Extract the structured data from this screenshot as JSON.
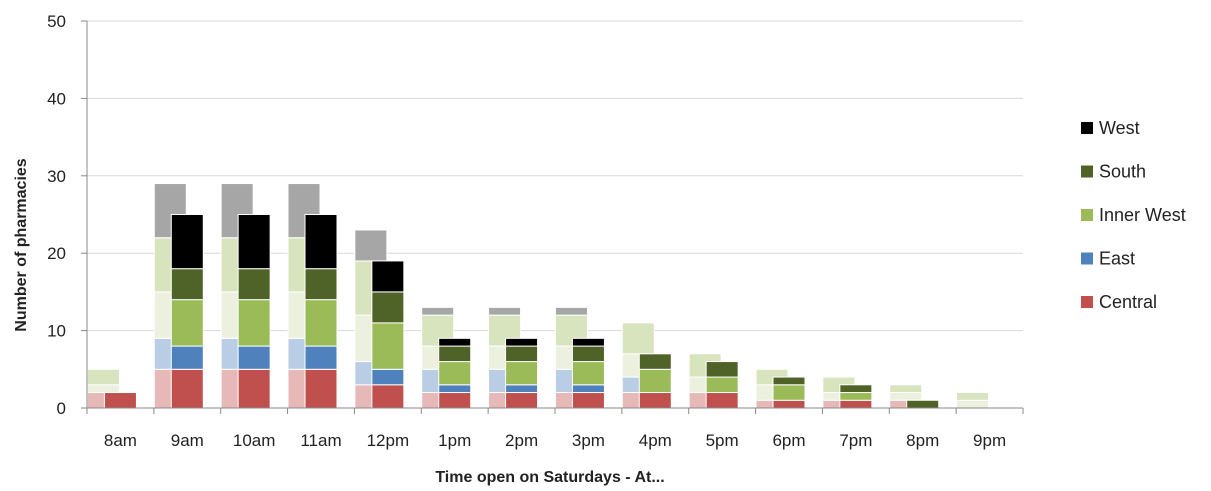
{
  "chart_data": {
    "type": "bar",
    "stacked": true,
    "title": "",
    "xlabel": "Time open on Saturdays - At...",
    "ylabel": "Number of pharmacies",
    "ylim": [
      0,
      50
    ],
    "yticks": [
      0,
      10,
      20,
      30,
      40,
      50
    ],
    "grid": true,
    "legend_position": "right",
    "categories": [
      "8am",
      "9am",
      "10am",
      "11am",
      "12pm",
      "1pm",
      "2pm",
      "3pm",
      "4pm",
      "5pm",
      "6pm",
      "7pm",
      "8pm",
      "9pm"
    ],
    "series": [
      {
        "name": "Central",
        "color": "#c0504d",
        "values": [
          2,
          5,
          5,
          5,
          3,
          2,
          2,
          2,
          2,
          2,
          1,
          1,
          0,
          0
        ]
      },
      {
        "name": "East",
        "color": "#4f81bd",
        "values": [
          0,
          3,
          3,
          3,
          2,
          1,
          1,
          1,
          0,
          0,
          0,
          0,
          0,
          0
        ]
      },
      {
        "name": "Inner West",
        "color": "#9bbb59",
        "values": [
          0,
          6,
          6,
          6,
          6,
          3,
          3,
          3,
          3,
          2,
          2,
          1,
          0,
          0
        ]
      },
      {
        "name": "South",
        "color": "#4f6228",
        "values": [
          0,
          4,
          4,
          4,
          4,
          2,
          2,
          2,
          2,
          2,
          1,
          1,
          1,
          0
        ]
      },
      {
        "name": "West",
        "color": "#000000",
        "values": [
          0,
          7,
          7,
          7,
          4,
          1,
          1,
          1,
          0,
          0,
          0,
          0,
          0,
          0
        ]
      }
    ],
    "background_stack": {
      "segments": [
        {
          "color": "#e6b9b8",
          "values": [
            2,
            5,
            5,
            5,
            3,
            2,
            2,
            2,
            2,
            2,
            1,
            1,
            1,
            0
          ]
        },
        {
          "color": "#b9cde5",
          "values": [
            0,
            4,
            4,
            4,
            3,
            3,
            3,
            3,
            2,
            0,
            0,
            0,
            0,
            0
          ]
        },
        {
          "color": "#ebf1de",
          "values": [
            1,
            6,
            6,
            6,
            6,
            3,
            3,
            3,
            3,
            2,
            2,
            1,
            1,
            1
          ]
        },
        {
          "color": "#d7e4bd",
          "values": [
            2,
            7,
            7,
            7,
            7,
            4,
            4,
            4,
            4,
            3,
            2,
            2,
            1,
            1
          ]
        },
        {
          "color": "#a6a6a6",
          "values": [
            0,
            7,
            7,
            7,
            4,
            1,
            1,
            1,
            0,
            0,
            0,
            0,
            0,
            0
          ]
        }
      ]
    }
  }
}
